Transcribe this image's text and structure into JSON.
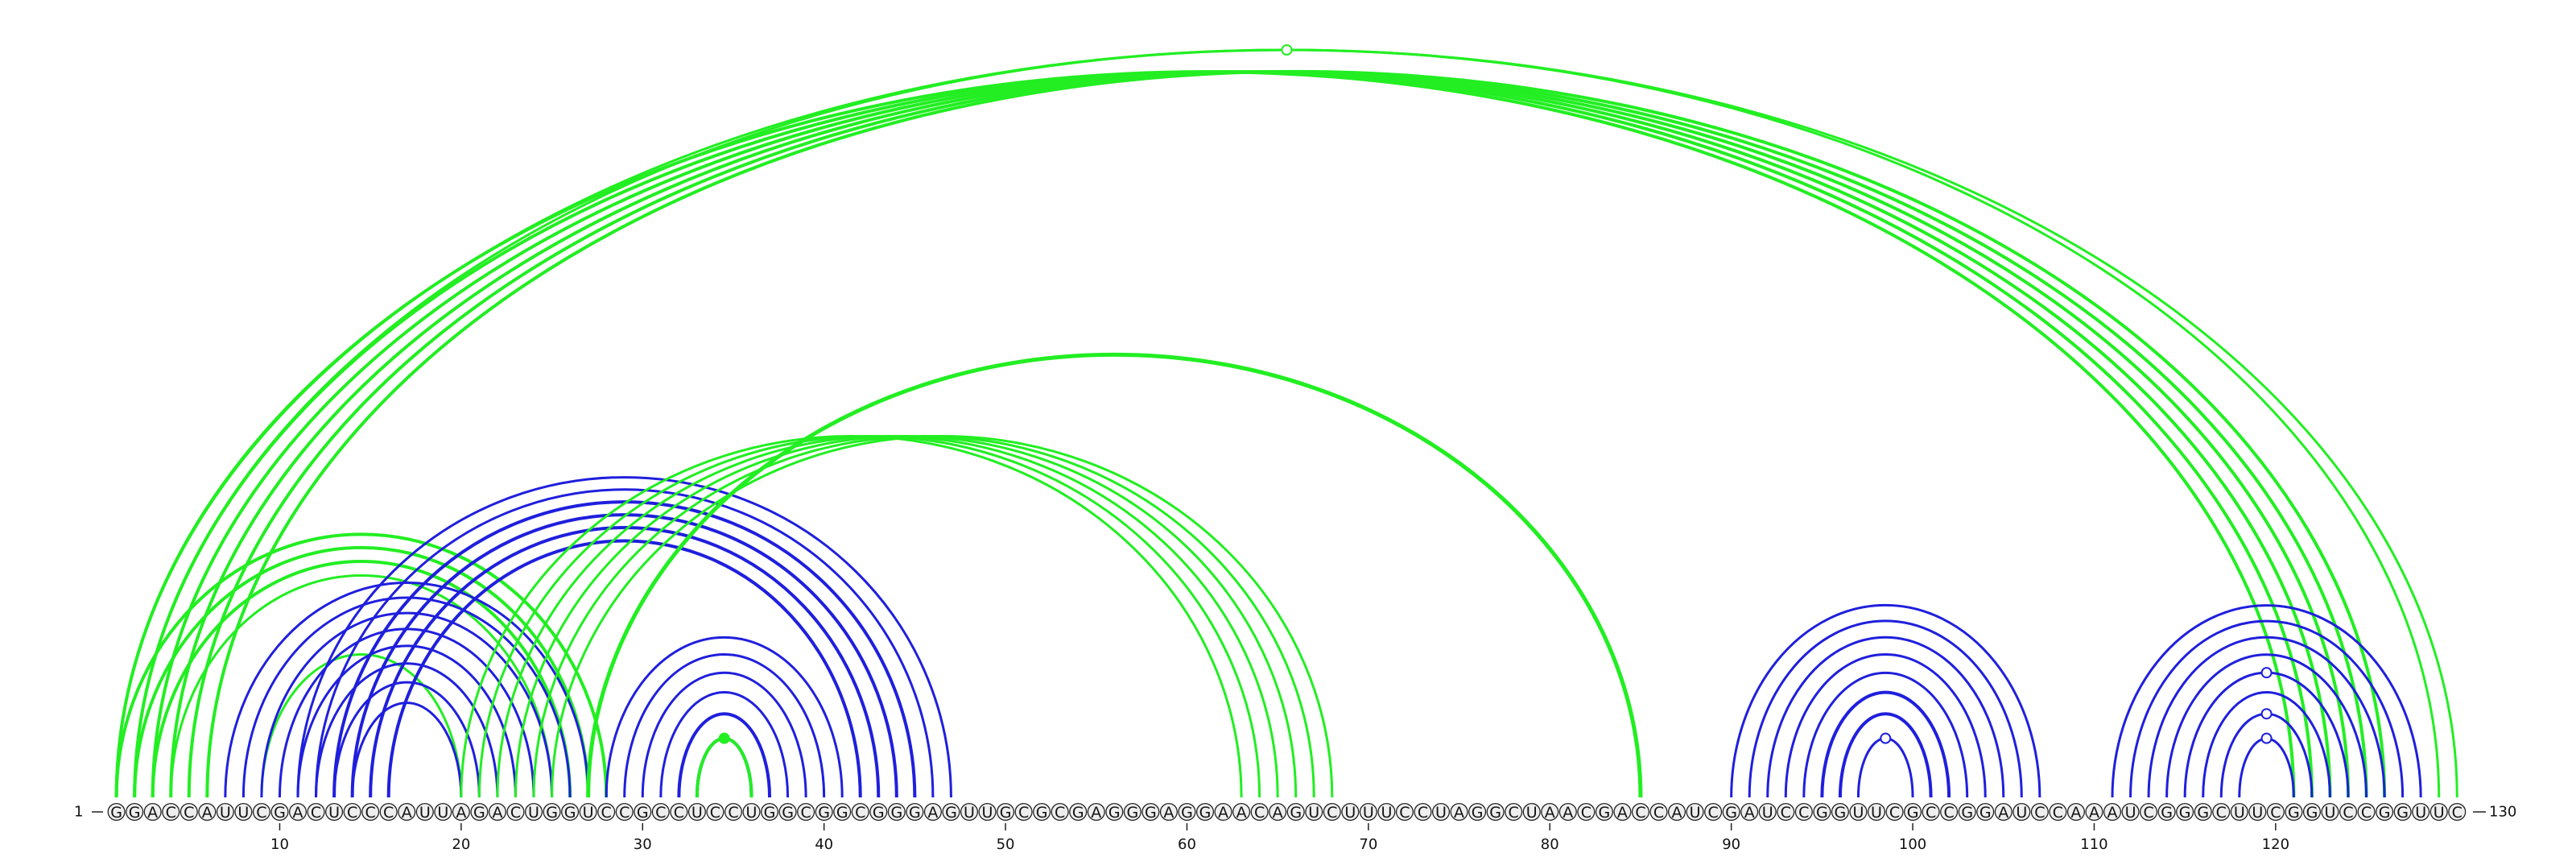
{
  "diagram": {
    "sequence": "GGACCAUUCGACUCCCAUUAGACUGGUCCGCCUCCUGGCGGCGGGAGUUGCGCGAGGGAGGAACAGUCUUUCCUAGGCUAACGACCAUCGAUCCGGUUCGCCGGAUCCAAAUCGGGCUUCGGUCCGGUUC",
    "start_label": "1",
    "end_label": "130",
    "ticks": [
      10,
      20,
      30,
      40,
      50,
      60,
      70,
      80,
      90,
      100,
      110,
      120
    ],
    "colors": {
      "green": "#22ee22",
      "blue": "#1f1fdd"
    },
    "arcs": [
      {
        "i": 1,
        "j": 130,
        "color": "green",
        "w": 3
      },
      {
        "i": 2,
        "j": 129,
        "color": "green",
        "w": 3
      },
      {
        "i": 1,
        "j": 121,
        "color": "green",
        "w": 4
      },
      {
        "i": 2,
        "j": 122,
        "color": "green",
        "w": 4
      },
      {
        "i": 3,
        "j": 123,
        "color": "green",
        "w": 4
      },
      {
        "i": 4,
        "j": 124,
        "color": "green",
        "w": 4
      },
      {
        "i": 5,
        "j": 125,
        "color": "green",
        "w": 4
      },
      {
        "i": 6,
        "j": 126,
        "color": "green",
        "w": 4
      },
      {
        "i": 1,
        "j": 28,
        "color": "green",
        "w": 4
      },
      {
        "i": 2,
        "j": 27,
        "color": "green",
        "w": 4
      },
      {
        "i": 3,
        "j": 26,
        "color": "green",
        "w": 4
      },
      {
        "i": 4,
        "j": 25,
        "color": "green",
        "w": 3
      },
      {
        "i": 9,
        "j": 20,
        "color": "green",
        "w": 3
      },
      {
        "i": 7,
        "j": 27,
        "color": "blue",
        "w": 3
      },
      {
        "i": 8,
        "j": 26,
        "color": "blue",
        "w": 3
      },
      {
        "i": 9,
        "j": 25,
        "color": "blue",
        "w": 3
      },
      {
        "i": 10,
        "j": 24,
        "color": "blue",
        "w": 3
      },
      {
        "i": 11,
        "j": 23,
        "color": "blue",
        "w": 3
      },
      {
        "i": 12,
        "j": 22,
        "color": "blue",
        "w": 3
      },
      {
        "i": 13,
        "j": 21,
        "color": "blue",
        "w": 3
      },
      {
        "i": 14,
        "j": 20,
        "color": "blue",
        "w": 3
      },
      {
        "i": 11,
        "j": 47,
        "color": "blue",
        "w": 3
      },
      {
        "i": 12,
        "j": 46,
        "color": "blue",
        "w": 3
      },
      {
        "i": 13,
        "j": 45,
        "color": "blue",
        "w": 4
      },
      {
        "i": 14,
        "j": 44,
        "color": "blue",
        "w": 4
      },
      {
        "i": 15,
        "j": 43,
        "color": "blue",
        "w": 4
      },
      {
        "i": 16,
        "j": 42,
        "color": "blue",
        "w": 4
      },
      {
        "i": 20,
        "j": 63,
        "color": "green",
        "w": 3
      },
      {
        "i": 21,
        "j": 64,
        "color": "green",
        "w": 3
      },
      {
        "i": 22,
        "j": 65,
        "color": "green",
        "w": 3
      },
      {
        "i": 23,
        "j": 66,
        "color": "green",
        "w": 3
      },
      {
        "i": 24,
        "j": 67,
        "color": "green",
        "w": 3
      },
      {
        "i": 25,
        "j": 68,
        "color": "green",
        "w": 3
      },
      {
        "i": 27,
        "j": 85,
        "color": "green",
        "w": 5
      },
      {
        "i": 28,
        "j": 41,
        "color": "blue",
        "w": 3
      },
      {
        "i": 29,
        "j": 40,
        "color": "blue",
        "w": 3
      },
      {
        "i": 30,
        "j": 39,
        "color": "blue",
        "w": 3
      },
      {
        "i": 31,
        "j": 38,
        "color": "blue",
        "w": 3
      },
      {
        "i": 32,
        "j": 37,
        "color": "blue",
        "w": 4
      },
      {
        "i": 33,
        "j": 36,
        "color": "blue",
        "w": 4
      },
      {
        "i": 33,
        "j": 36,
        "color": "green",
        "w": 4
      },
      {
        "i": 90,
        "j": 107,
        "color": "blue",
        "w": 3
      },
      {
        "i": 91,
        "j": 106,
        "color": "blue",
        "w": 3
      },
      {
        "i": 92,
        "j": 105,
        "color": "blue",
        "w": 3
      },
      {
        "i": 93,
        "j": 104,
        "color": "blue",
        "w": 3
      },
      {
        "i": 94,
        "j": 103,
        "color": "blue",
        "w": 3
      },
      {
        "i": 95,
        "j": 102,
        "color": "blue",
        "w": 4
      },
      {
        "i": 96,
        "j": 101,
        "color": "blue",
        "w": 4
      },
      {
        "i": 97,
        "j": 100,
        "color": "blue",
        "w": 3
      },
      {
        "i": 111,
        "j": 128,
        "color": "blue",
        "w": 3
      },
      {
        "i": 112,
        "j": 127,
        "color": "blue",
        "w": 3
      },
      {
        "i": 113,
        "j": 126,
        "color": "blue",
        "w": 3
      },
      {
        "i": 114,
        "j": 125,
        "color": "blue",
        "w": 3
      },
      {
        "i": 115,
        "j": 124,
        "color": "blue",
        "w": 3
      },
      {
        "i": 116,
        "j": 123,
        "color": "blue",
        "w": 3
      },
      {
        "i": 117,
        "j": 122,
        "color": "blue",
        "w": 3
      },
      {
        "i": 118,
        "j": 121,
        "color": "blue",
        "w": 3
      }
    ],
    "markers": [
      {
        "i": 2,
        "j": 129,
        "color": "green",
        "filled": false
      },
      {
        "i": 33,
        "j": 36,
        "color": "green",
        "filled": true
      },
      {
        "i": 97,
        "j": 100,
        "color": "blue",
        "filled": false
      },
      {
        "i": 115,
        "j": 124,
        "color": "blue",
        "filled": false
      },
      {
        "i": 117,
        "j": 122,
        "color": "blue",
        "filled": false
      },
      {
        "i": 118,
        "j": 121,
        "color": "blue",
        "filled": false
      }
    ]
  }
}
